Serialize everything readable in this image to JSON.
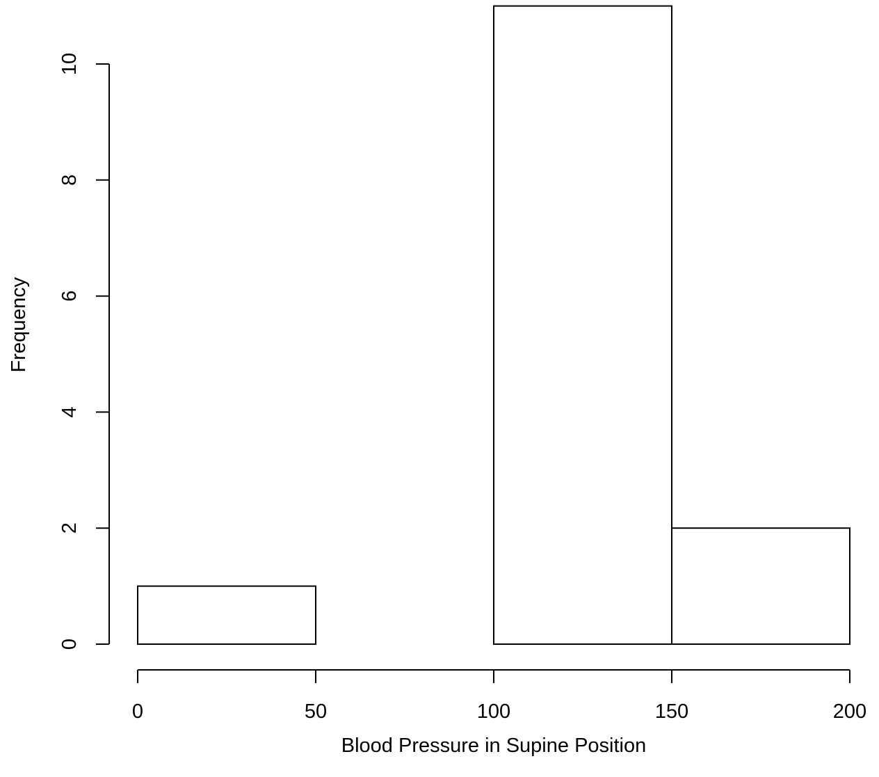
{
  "chart_data": {
    "type": "bar",
    "histogram": true,
    "bins": [
      {
        "from": 0,
        "to": 50,
        "count": 1
      },
      {
        "from": 50,
        "to": 100,
        "count": 0
      },
      {
        "from": 100,
        "to": 150,
        "count": 11
      },
      {
        "from": 150,
        "to": 200,
        "count": 2
      }
    ],
    "title": "",
    "xlabel": "Blood Pressure in Supine Position",
    "ylabel": "Frequency",
    "xlim": [
      0,
      200
    ],
    "ylim": [
      0,
      11
    ],
    "x_ticks": [
      0,
      50,
      100,
      150,
      200
    ],
    "x_tick_labels": [
      "0",
      "50",
      "100",
      "150",
      "200"
    ],
    "y_ticks": [
      0,
      2,
      4,
      6,
      8,
      10
    ],
    "y_tick_labels": [
      "0",
      "2",
      "4",
      "6",
      "8",
      "10"
    ],
    "grid": false,
    "bar_fill": "#ffffff",
    "bar_stroke": "#000000"
  }
}
